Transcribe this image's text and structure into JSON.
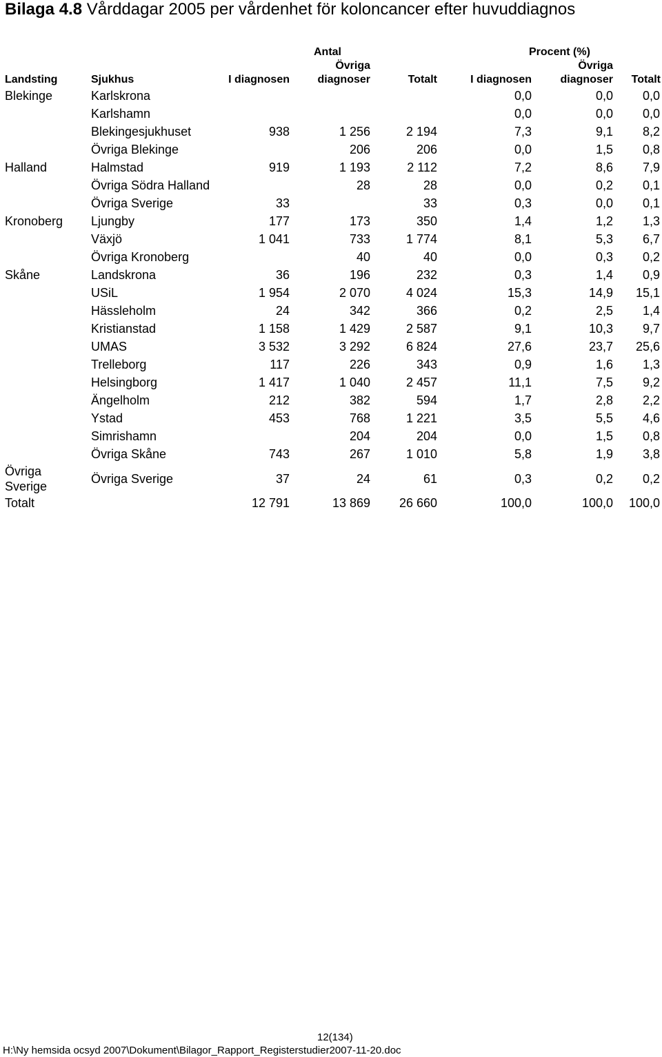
{
  "title_prefix": "Bilaga 4.8",
  "title_rest": " Vårddagar 2005 per vårdenhet för koloncancer efter huvuddiagnos",
  "group_headers": {
    "antal": "Antal",
    "procent": "Procent (%)"
  },
  "columns": {
    "landsting": "Landsting",
    "sjukhus": "Sjukhus",
    "antal_i_diagnosen": "I diagnosen",
    "antal_ovriga_l1": "Övriga",
    "antal_ovriga_l2": "diagnoser",
    "antal_totalt": "Totalt",
    "proc_i_diagnosen": "I diagnosen",
    "proc_ovriga_l1": "Övriga",
    "proc_ovriga_l2": "diagnoser",
    "proc_totalt": "Totalt"
  },
  "rows": [
    {
      "landsting": "Blekinge",
      "sjukhus": "Karlskrona",
      "a_i": "",
      "a_o": "",
      "a_t": "",
      "p_i": "0,0",
      "p_o": "0,0",
      "p_t": "0,0"
    },
    {
      "landsting": "",
      "sjukhus": "Karlshamn",
      "a_i": "",
      "a_o": "",
      "a_t": "",
      "p_i": "0,0",
      "p_o": "0,0",
      "p_t": "0,0"
    },
    {
      "landsting": "",
      "sjukhus": "Blekingesjukhuset",
      "a_i": "938",
      "a_o": "1 256",
      "a_t": "2 194",
      "p_i": "7,3",
      "p_o": "9,1",
      "p_t": "8,2"
    },
    {
      "landsting": "",
      "sjukhus": "Övriga Blekinge",
      "a_i": "",
      "a_o": "206",
      "a_t": "206",
      "p_i": "0,0",
      "p_o": "1,5",
      "p_t": "0,8"
    },
    {
      "landsting": "Halland",
      "sjukhus": "Halmstad",
      "a_i": "919",
      "a_o": "1 193",
      "a_t": "2 112",
      "p_i": "7,2",
      "p_o": "8,6",
      "p_t": "7,9"
    },
    {
      "landsting": "",
      "sjukhus": "Övriga Södra Halland",
      "a_i": "",
      "a_o": "28",
      "a_t": "28",
      "p_i": "0,0",
      "p_o": "0,2",
      "p_t": "0,1"
    },
    {
      "landsting": "",
      "sjukhus": "Övriga Sverige",
      "a_i": "33",
      "a_o": "",
      "a_t": "33",
      "p_i": "0,3",
      "p_o": "0,0",
      "p_t": "0,1"
    },
    {
      "landsting": "Kronoberg",
      "sjukhus": "Ljungby",
      "a_i": "177",
      "a_o": "173",
      "a_t": "350",
      "p_i": "1,4",
      "p_o": "1,2",
      "p_t": "1,3"
    },
    {
      "landsting": "",
      "sjukhus": "Växjö",
      "a_i": "1 041",
      "a_o": "733",
      "a_t": "1 774",
      "p_i": "8,1",
      "p_o": "5,3",
      "p_t": "6,7"
    },
    {
      "landsting": "",
      "sjukhus": "Övriga Kronoberg",
      "a_i": "",
      "a_o": "40",
      "a_t": "40",
      "p_i": "0,0",
      "p_o": "0,3",
      "p_t": "0,2"
    },
    {
      "landsting": "Skåne",
      "sjukhus": "Landskrona",
      "a_i": "36",
      "a_o": "196",
      "a_t": "232",
      "p_i": "0,3",
      "p_o": "1,4",
      "p_t": "0,9"
    },
    {
      "landsting": "",
      "sjukhus": "USiL",
      "a_i": "1 954",
      "a_o": "2 070",
      "a_t": "4 024",
      "p_i": "15,3",
      "p_o": "14,9",
      "p_t": "15,1"
    },
    {
      "landsting": "",
      "sjukhus": "Hässleholm",
      "a_i": "24",
      "a_o": "342",
      "a_t": "366",
      "p_i": "0,2",
      "p_o": "2,5",
      "p_t": "1,4"
    },
    {
      "landsting": "",
      "sjukhus": "Kristianstad",
      "a_i": "1 158",
      "a_o": "1 429",
      "a_t": "2 587",
      "p_i": "9,1",
      "p_o": "10,3",
      "p_t": "9,7"
    },
    {
      "landsting": "",
      "sjukhus": "UMAS",
      "a_i": "3 532",
      "a_o": "3 292",
      "a_t": "6 824",
      "p_i": "27,6",
      "p_o": "23,7",
      "p_t": "25,6"
    },
    {
      "landsting": "",
      "sjukhus": "Trelleborg",
      "a_i": "117",
      "a_o": "226",
      "a_t": "343",
      "p_i": "0,9",
      "p_o": "1,6",
      "p_t": "1,3"
    },
    {
      "landsting": "",
      "sjukhus": "Helsingborg",
      "a_i": "1 417",
      "a_o": "1 040",
      "a_t": "2 457",
      "p_i": "11,1",
      "p_o": "7,5",
      "p_t": "9,2"
    },
    {
      "landsting": "",
      "sjukhus": "Ängelholm",
      "a_i": "212",
      "a_o": "382",
      "a_t": "594",
      "p_i": "1,7",
      "p_o": "2,8",
      "p_t": "2,2"
    },
    {
      "landsting": "",
      "sjukhus": "Ystad",
      "a_i": "453",
      "a_o": "768",
      "a_t": "1 221",
      "p_i": "3,5",
      "p_o": "5,5",
      "p_t": "4,6"
    },
    {
      "landsting": "",
      "sjukhus": "Simrishamn",
      "a_i": "",
      "a_o": "204",
      "a_t": "204",
      "p_i": "0,0",
      "p_o": "1,5",
      "p_t": "0,8"
    },
    {
      "landsting": "",
      "sjukhus": "Övriga Skåne",
      "a_i": "743",
      "a_o": "267",
      "a_t": "1 010",
      "p_i": "5,8",
      "p_o": "1,9",
      "p_t": "3,8"
    },
    {
      "landsting": "Övriga Sverige",
      "sjukhus": "Övriga Sverige",
      "a_i": "37",
      "a_o": "24",
      "a_t": "61",
      "p_i": "0,3",
      "p_o": "0,2",
      "p_t": "0,2"
    },
    {
      "landsting": "Totalt",
      "sjukhus": "",
      "a_i": "12 791",
      "a_o": "13 869",
      "a_t": "26 660",
      "p_i": "100,0",
      "p_o": "100,0",
      "p_t": "100,0"
    }
  ],
  "footer": {
    "page": "12(134)",
    "path": "H:\\Ny hemsida ocsyd 2007\\Dokument\\Bilagor_Rapport_Registerstudier2007-11-20.doc"
  }
}
